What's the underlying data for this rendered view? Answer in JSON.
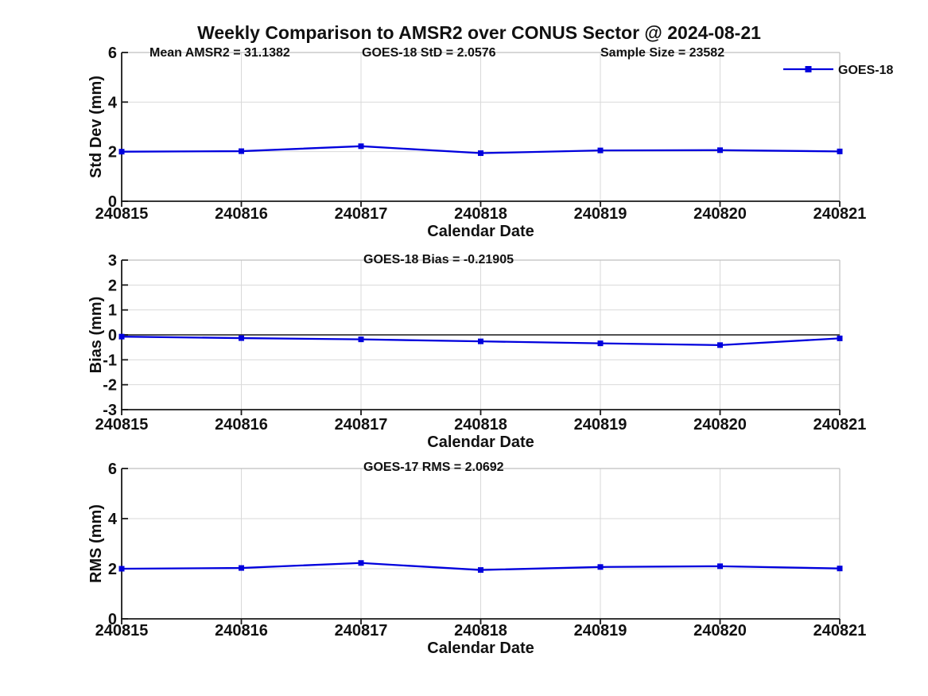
{
  "title": "Weekly Comparison to AMSR2 over CONUS Sector @ 2024-08-21",
  "accent_color": "#0000dd",
  "grid_color": "#d9d9d9",
  "box_color": "#bfbfbf",
  "axis_color": "#1a1a1a",
  "chart_data": [
    {
      "type": "line",
      "ylabel": "Std Dev (mm)",
      "xlabel": "Calendar Date",
      "categories": [
        "240815",
        "240816",
        "240817",
        "240818",
        "240819",
        "240820",
        "240821"
      ],
      "series": [
        {
          "name": "GOES-18",
          "color": "#0000dd",
          "marker": "square",
          "values": [
            2.0,
            2.02,
            2.22,
            1.94,
            2.05,
            2.06,
            2.01
          ]
        }
      ],
      "ylim": [
        0,
        6
      ],
      "yticks": [
        0,
        2,
        4,
        6
      ],
      "grid": true,
      "legend": {
        "entries": [
          "GOES-18"
        ],
        "position": "top-right"
      },
      "annotations": [
        "Mean AMSR2 = 31.1382",
        "GOES-18 StD = 2.0576",
        "Sample Size = 23582"
      ]
    },
    {
      "type": "line",
      "ylabel": "Bias (mm)",
      "xlabel": "Calendar Date",
      "categories": [
        "240815",
        "240816",
        "240817",
        "240818",
        "240819",
        "240820",
        "240821"
      ],
      "series": [
        {
          "name": "GOES-18",
          "color": "#0000dd",
          "marker": "square",
          "values": [
            -0.07,
            -0.13,
            -0.18,
            -0.26,
            -0.34,
            -0.41,
            -0.14
          ]
        }
      ],
      "ylim": [
        -3,
        3
      ],
      "yticks": [
        -3,
        -2,
        -1,
        0,
        1,
        2,
        3
      ],
      "grid": true,
      "zero_line": true,
      "annotations": [
        "GOES-18 Bias  = -0.21905"
      ]
    },
    {
      "type": "line",
      "ylabel": "RMS (mm)",
      "xlabel": "Calendar Date",
      "categories": [
        "240815",
        "240816",
        "240817",
        "240818",
        "240819",
        "240820",
        "240821"
      ],
      "series": [
        {
          "name": "GOES-18",
          "color": "#0000dd",
          "marker": "square",
          "values": [
            2.0,
            2.03,
            2.23,
            1.95,
            2.07,
            2.1,
            2.01
          ]
        }
      ],
      "ylim": [
        0,
        6
      ],
      "yticks": [
        0,
        2,
        4,
        6
      ],
      "grid": true,
      "annotations": [
        "GOES-17 RMS = 2.0692"
      ]
    }
  ]
}
